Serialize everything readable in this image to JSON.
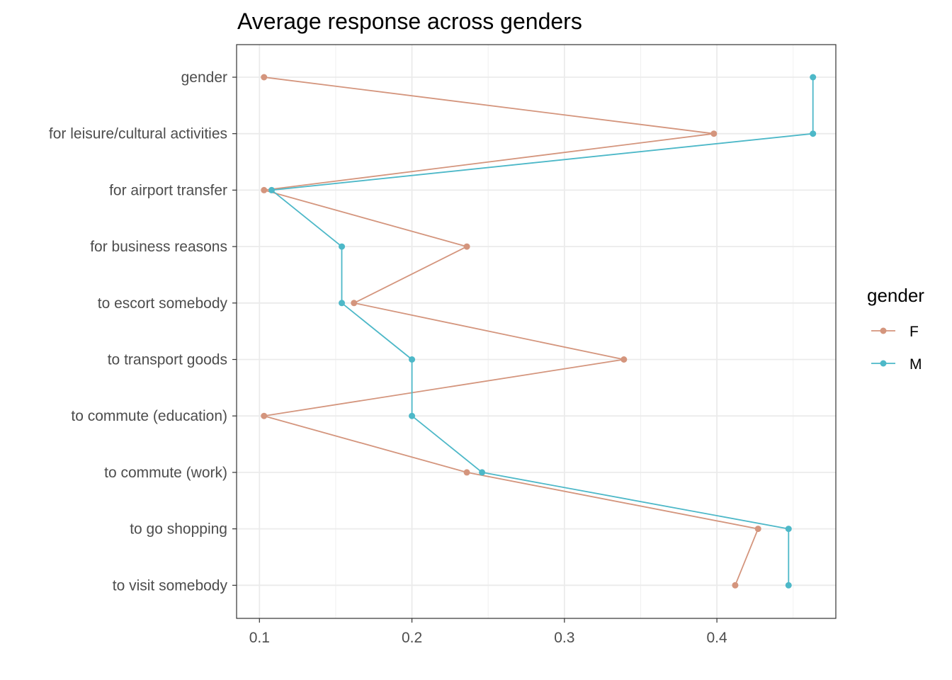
{
  "chart_data": {
    "type": "line",
    "title": "Average response across genders",
    "xlabel": "",
    "ylabel": "",
    "categories": [
      "gender",
      "for leisure/cultural activities",
      "for airport transfer",
      "for business reasons",
      "to escort somebody",
      "to transport goods",
      "to commute (education)",
      "to commute (work)",
      "to go shopping",
      "to visit somebody"
    ],
    "xlim": [
      0.085,
      0.478
    ],
    "xticks": [
      "0.1",
      "0.2",
      "0.3",
      "0.4"
    ],
    "grid": true,
    "legend": {
      "title": "gender",
      "position": "right"
    },
    "series": [
      {
        "name": "F",
        "color": "#d4957d",
        "values": [
          0.103,
          0.398,
          0.103,
          0.236,
          0.162,
          0.339,
          0.103,
          0.236,
          0.427,
          0.412
        ]
      },
      {
        "name": "M",
        "color": "#4db8c8",
        "values": [
          0.463,
          0.463,
          0.108,
          0.154,
          0.154,
          0.2,
          0.2,
          0.246,
          0.447,
          0.447
        ]
      }
    ]
  }
}
